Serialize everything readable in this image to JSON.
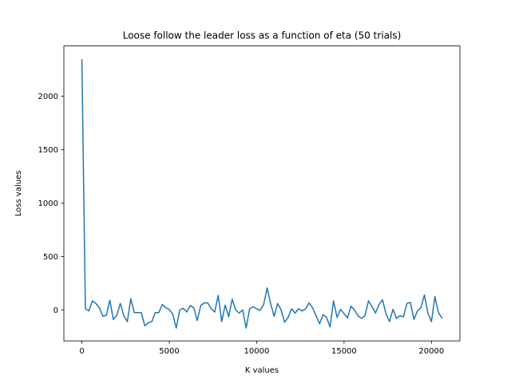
{
  "chart_data": {
    "type": "line",
    "title": "Loose follow the leader loss as a function of eta (50 trials)",
    "xlabel": "K values",
    "ylabel": "Loss values",
    "xlim": [
      -1030,
      21630
    ],
    "ylim": [
      -290,
      2470
    ],
    "xticks": [
      0,
      5000,
      10000,
      15000,
      20000
    ],
    "xtick_labels": [
      "0",
      "5000",
      "10000",
      "15000",
      "20000"
    ],
    "yticks": [
      0,
      500,
      1000,
      1500,
      2000
    ],
    "ytick_labels": [
      "0",
      "500",
      "1000",
      "1500",
      "2000"
    ],
    "grid": false,
    "colors": {
      "line": "#1f77b4",
      "axes": "#000000",
      "background": "#ffffff"
    },
    "series": [
      {
        "x": [
          0,
          200,
          400,
          600,
          800,
          1000,
          1200,
          1400,
          1600,
          1800,
          2000,
          2200,
          2400,
          2600,
          2800,
          3000,
          3200,
          3400,
          3600,
          3800,
          4000,
          4200,
          4400,
          4600,
          4800,
          5000,
          5200,
          5400,
          5600,
          5800,
          6000,
          6200,
          6400,
          6600,
          6800,
          7000,
          7200,
          7400,
          7600,
          7800,
          8000,
          8200,
          8400,
          8600,
          8800,
          9000,
          9200,
          9400,
          9600,
          9800,
          10000,
          10200,
          10400,
          10600,
          10800,
          11000,
          11200,
          11400,
          11600,
          11800,
          12000,
          12200,
          12400,
          12600,
          12800,
          13000,
          13200,
          13400,
          13600,
          13800,
          14000,
          14200,
          14400,
          14600,
          14800,
          15000,
          15200,
          15400,
          15600,
          15800,
          16000,
          16200,
          16400,
          16600,
          16800,
          17000,
          17200,
          17400,
          17600,
          17800,
          18000,
          18200,
          18400,
          18600,
          18800,
          19000,
          19200,
          19400,
          19600,
          19800,
          20000,
          20200,
          20400,
          20600
        ],
        "values": [
          2340,
          10,
          -10,
          85,
          60,
          20,
          -60,
          -50,
          90,
          -90,
          -50,
          60,
          -55,
          -110,
          105,
          -25,
          -25,
          -25,
          -150,
          -120,
          -110,
          -25,
          -25,
          50,
          20,
          5,
          -40,
          -170,
          0,
          15,
          -20,
          40,
          20,
          -100,
          40,
          65,
          65,
          10,
          -20,
          135,
          -110,
          45,
          -65,
          100,
          0,
          -30,
          0,
          -170,
          10,
          30,
          10,
          -5,
          50,
          205,
          60,
          -60,
          60,
          0,
          -115,
          -70,
          10,
          -30,
          10,
          -10,
          10,
          65,
          20,
          -55,
          -130,
          -45,
          -70,
          -160,
          85,
          -70,
          5,
          -35,
          -75,
          35,
          0,
          -55,
          -80,
          -55,
          85,
          30,
          -30,
          50,
          95,
          -35,
          -110,
          5,
          -80,
          -55,
          -65,
          60,
          70,
          -90,
          -10,
          20,
          140,
          -30,
          -110,
          125,
          -25,
          -75
        ]
      }
    ]
  }
}
